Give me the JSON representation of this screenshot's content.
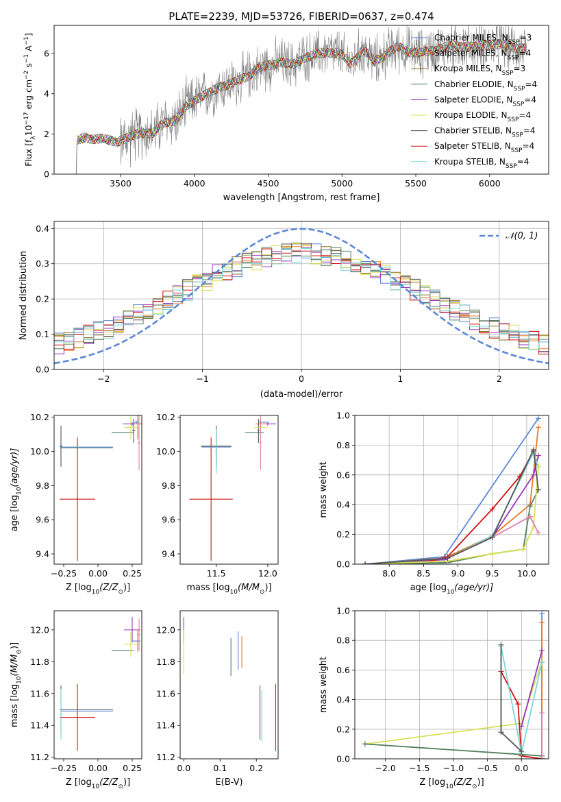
{
  "figure": {
    "title": "PLATE=2239, MJD=53726, FIBERID=0637, z=0.474"
  },
  "colors": {
    "ChabrierMILES": "#5b86d6",
    "SalpeterMILES": "#e07b2a",
    "KroupaMILES": "#8a6a1a",
    "ChabrierELODIE": "#4f7f5c",
    "SalpeterELODIE": "#9933bb",
    "KroupaELODIE": "#d8e055",
    "ChabrierSTELIB": "#555555",
    "SalpeterSTELIB": "#cc1111",
    "KroupaSTELIB": "#77d7d7",
    "pink": "#e27bb0",
    "gaussian": "#5b86d6",
    "spectrum": "#808080",
    "grid": "#b0b0b0"
  },
  "models": [
    {
      "key": "ChabrierMILES",
      "label": "Chabrier MILES, N",
      "sub": "SSP",
      "tail": "=3"
    },
    {
      "key": "SalpeterMILES",
      "label": "Salpeter MILES, N",
      "sub": "SSP",
      "tail": "=4"
    },
    {
      "key": "KroupaMILES",
      "label": "Kroupa MILES, N",
      "sub": "SSP",
      "tail": "=3"
    },
    {
      "key": "ChabrierELODIE",
      "label": "Chabrier ELODIE, N",
      "sub": "SSP",
      "tail": "=4"
    },
    {
      "key": "SalpeterELODIE",
      "label": "Salpeter ELODIE, N",
      "sub": "SSP",
      "tail": "=4"
    },
    {
      "key": "KroupaELODIE",
      "label": "Kroupa ELODIE, N",
      "sub": "SSP",
      "tail": "=4"
    },
    {
      "key": "ChabrierSTELIB",
      "label": "Chabrier STELIB, N",
      "sub": "SSP",
      "tail": "=4"
    },
    {
      "key": "SalpeterSTELIB",
      "label": "Salpeter STELIB, N",
      "sub": "SSP",
      "tail": "=4"
    },
    {
      "key": "KroupaSTELIB",
      "label": "Kroupa STELIB, N",
      "sub": "SSP",
      "tail": "=4"
    }
  ],
  "chart_data": [
    {
      "id": "spectrum",
      "type": "line",
      "xlabel": "wavelength [Angstrom, rest frame]",
      "ylabel": "Flux [f",
      "ylabel_sub": "λ",
      "ylabel_rest": "10",
      "ylabel_sup": "−17",
      "ylabel_units": " erg cm",
      "ylabel_sup2": "−2",
      "ylabel_units2": " s",
      "ylabel_sup3": "−1",
      "ylabel_units3": " A",
      "ylabel_sup4": "−1",
      "ylabel_end": "]",
      "xlim": [
        3050,
        6400
      ],
      "ylim": [
        0,
        7.4
      ],
      "xticks": [
        3500,
        4000,
        4500,
        5000,
        5500,
        6000
      ],
      "yticks": [
        0,
        2,
        4,
        6
      ],
      "trend_x": [
        3200,
        3260,
        3330,
        3400,
        3480,
        3560,
        3640,
        3720,
        3800,
        3880,
        3950,
        4020,
        4100,
        4180,
        4260,
        4340,
        4420,
        4500,
        4580,
        4660,
        4740,
        4820,
        4900,
        4980,
        5060,
        5140,
        5220,
        5300,
        5380,
        5460,
        5540,
        5620,
        5700,
        5800,
        5900,
        6000,
        6100,
        6200,
        6250
      ],
      "trend_y": [
        1.6,
        1.85,
        1.75,
        1.7,
        1.65,
        1.8,
        2.1,
        2.0,
        2.6,
        2.7,
        3.4,
        3.8,
        4.0,
        4.4,
        4.5,
        4.8,
        5.2,
        5.4,
        5.6,
        5.4,
        5.8,
        5.9,
        6.1,
        6.0,
        5.5,
        6.2,
        5.6,
        6.0,
        6.3,
        6.1,
        6.0,
        6.2,
        6.3,
        6.4,
        6.3,
        6.5,
        6.4,
        6.3,
        6.2
      ]
    },
    {
      "id": "residuals",
      "type": "line",
      "xlabel": "(data-model)/error",
      "ylabel": "Normed distribution",
      "xlim": [
        -2.5,
        2.5
      ],
      "ylim": [
        0,
        0.42
      ],
      "xticks": [
        -2,
        -1,
        0,
        1,
        2
      ],
      "xticklabels": [
        "−2",
        "−1",
        "0",
        "1",
        "2"
      ],
      "yticks": [
        0.0,
        0.1,
        0.2,
        0.3,
        0.4
      ],
      "yticklabels": [
        "0.0",
        "0.1",
        "0.2",
        "0.3",
        "0.4"
      ],
      "legend": "𝒩(0, 1)"
    },
    {
      "id": "age_vs_Z",
      "type": "errorbar",
      "xlabel": "Z [log",
      "xlabel_sub": "10",
      "xlabel_rest": "(Z/Z",
      "xlabel_sub2": "⊙",
      "xlabel_end": ")]",
      "ylabel": "age  [log",
      "ylabel_sub": "10",
      "ylabel_rest": "(age/yr)]",
      "xlim": [
        -0.32,
        0.32
      ],
      "ylim": [
        9.34,
        10.21
      ],
      "xticks": [
        -0.25,
        0.0,
        0.25
      ],
      "xticklabels": [
        "−0.25",
        "0.00",
        "0.25"
      ],
      "yticks": [
        9.4,
        9.6,
        9.8,
        10.0,
        10.2
      ],
      "yticklabels": [
        "9.4",
        "9.6",
        "9.8",
        "10.0",
        "10.2"
      ],
      "points": [
        {
          "m": "SalpeterSTELIB",
          "x": -0.15,
          "y": 9.72,
          "xerr": 0.13,
          "yerr": 0.36
        },
        {
          "m": "KroupaSTELIB",
          "x": -0.27,
          "y": 10.02,
          "xerr": 0.01,
          "yerr": 0.1
        },
        {
          "m": "ChabrierSTELIB",
          "x": -0.27,
          "y": 10.03,
          "xerr": 0.01,
          "yerr": 0.12
        },
        {
          "m": "ChabrierELODIE",
          "x": -0.08,
          "y": 10.02,
          "xerr": 0.19,
          "yerr": 0.0
        },
        {
          "m": "ChabrierMILES",
          "x": -0.08,
          "y": 10.025,
          "xerr": 0.19,
          "yerr": 0.0
        },
        {
          "m": "ChabrierELODIE",
          "x": 0.18,
          "y": 10.11,
          "xerr": 0.08,
          "yerr": 0.0
        },
        {
          "m": "ChabrierSTELIB",
          "x": 0.26,
          "y": 10.12,
          "xerr": 0.01,
          "yerr": 0.07
        },
        {
          "m": "KroupaELODIE",
          "x": 0.24,
          "y": 10.14,
          "xerr": 0.05,
          "yerr": 0.07
        },
        {
          "m": "SalpeterELODIE",
          "x": 0.25,
          "y": 10.16,
          "xerr": 0.07,
          "yerr": 0.01
        },
        {
          "m": "SalpeterMILES",
          "x": 0.29,
          "y": 10.16,
          "xerr": 0.02,
          "yerr": 0.09
        },
        {
          "m": "pink",
          "x": 0.3,
          "y": 10.05,
          "xerr": 0.01,
          "yerr": 0.16
        },
        {
          "m": "ChabrierMILES",
          "x": 0.28,
          "y": 10.17,
          "xerr": 0.02,
          "yerr": 0.01
        }
      ]
    },
    {
      "id": "age_vs_mass",
      "type": "errorbar",
      "xlabel": "mass [log",
      "xlabel_sub": "10",
      "xlabel_rest": "(M/M",
      "xlabel_sub2": "⊙",
      "xlabel_end": ")]",
      "xlim": [
        11.15,
        12.1
      ],
      "ylim": [
        9.34,
        10.21
      ],
      "xticks": [
        11.5,
        12.0
      ],
      "xticklabels": [
        "11.5",
        "12.0"
      ],
      "yticks": [
        9.4,
        9.6,
        9.8,
        10.0,
        10.2
      ],
      "yticklabels": [
        "9.4",
        "9.6",
        "9.8",
        "10.0",
        "10.2"
      ],
      "points": [
        {
          "m": "SalpeterSTELIB",
          "x": 11.45,
          "y": 9.72,
          "xerr": 0.21,
          "yerr": 0.36
        },
        {
          "m": "ChabrierSTELIB",
          "x": 11.5,
          "y": 10.03,
          "xerr": 0.15,
          "yerr": 0.12
        },
        {
          "m": "ChabrierMILES",
          "x": 11.5,
          "y": 10.025,
          "xerr": 0.14,
          "yerr": 0.0
        },
        {
          "m": "KroupaSTELIB",
          "x": 11.5,
          "y": 10.0,
          "xerr": 0.01,
          "yerr": 0.13
        },
        {
          "m": "ChabrierELODIE",
          "x": 11.87,
          "y": 10.11,
          "xerr": 0.09,
          "yerr": 0.0
        },
        {
          "m": "ChabrierSTELIB",
          "x": 11.91,
          "y": 10.12,
          "xerr": 0.01,
          "yerr": 0.07
        },
        {
          "m": "KroupaELODIE",
          "x": 11.93,
          "y": 10.14,
          "xerr": 0.06,
          "yerr": 0.07
        },
        {
          "m": "SalpeterELODIE",
          "x": 12.0,
          "y": 10.16,
          "xerr": 0.08,
          "yerr": 0.01
        },
        {
          "m": "SalpeterMILES",
          "x": 11.93,
          "y": 10.16,
          "xerr": 0.05,
          "yerr": 0.03
        },
        {
          "m": "pink",
          "x": 11.93,
          "y": 10.05,
          "xerr": 0.01,
          "yerr": 0.16
        },
        {
          "m": "ChabrierMILES",
          "x": 11.96,
          "y": 10.17,
          "xerr": 0.05,
          "yerr": 0.0
        }
      ]
    },
    {
      "id": "mass_weight_vs_age",
      "type": "line",
      "xlabel": "age  [log",
      "xlabel_sub": "10",
      "xlabel_rest": "(age/yr)]",
      "ylabel": "mass weight",
      "xlim": [
        7.5,
        10.32
      ],
      "ylim": [
        0,
        1.0
      ],
      "xticks": [
        8.0,
        8.5,
        9.0,
        9.5,
        10.0
      ],
      "xticklabels": [
        "8.0",
        "8.5",
        "9.0",
        "9.5",
        "10.0"
      ],
      "yticks": [
        0.0,
        0.2,
        0.4,
        0.6,
        0.8,
        1.0
      ],
      "yticklabels": [
        "0.0",
        "0.2",
        "0.4",
        "0.6",
        "0.8",
        "1.0"
      ],
      "series": [
        {
          "m": "ChabrierMILES",
          "x": [
            7.65,
            8.8,
            10.17
          ],
          "y": [
            0.0,
            0.05,
            0.98
          ]
        },
        {
          "m": "SalpeterMILES",
          "x": [
            7.65,
            8.8,
            9.5,
            10.05,
            10.17
          ],
          "y": [
            0.0,
            0.04,
            0.19,
            0.4,
            0.92
          ]
        },
        {
          "m": "SalpeterELODIE",
          "x": [
            7.65,
            8.8,
            9.5,
            10.1,
            10.17
          ],
          "y": [
            0.0,
            0.03,
            0.18,
            0.6,
            0.73
          ]
        },
        {
          "m": "SalpeterSTELIB",
          "x": [
            7.65,
            8.5,
            8.85,
            9.5,
            9.9,
            10.1
          ],
          "y": [
            0.0,
            0.01,
            0.05,
            0.37,
            0.59,
            0.76
          ]
        },
        {
          "m": "KroupaSTELIB",
          "x": [
            7.65,
            8.85,
            9.5,
            10.1,
            10.17
          ],
          "y": [
            0.0,
            0.04,
            0.19,
            0.75,
            0.65
          ]
        },
        {
          "m": "ChabrierELODIE",
          "x": [
            7.65,
            8.85,
            9.5,
            9.95,
            10.05,
            10.17
          ],
          "y": [
            0.0,
            0.01,
            0.07,
            0.1,
            0.39,
            0.5
          ]
        },
        {
          "m": "KroupaELODIE",
          "x": [
            7.65,
            8.85,
            9.5,
            9.95,
            10.1,
            10.17
          ],
          "y": [
            0.0,
            0.02,
            0.07,
            0.1,
            0.25,
            0.66
          ]
        },
        {
          "m": "pink",
          "x": [
            8.85,
            9.5,
            10.05,
            10.17
          ],
          "y": [
            0.04,
            0.18,
            0.32,
            0.21
          ]
        },
        {
          "m": "ChabrierSTELIB",
          "x": [
            7.65,
            8.85,
            9.5,
            10.1,
            10.17
          ],
          "y": [
            0.0,
            0.04,
            0.18,
            0.77,
            0.5
          ]
        }
      ]
    },
    {
      "id": "mass_vs_Z",
      "type": "errorbar",
      "xlabel": "Z [log",
      "xlabel_sub": "10",
      "xlabel_rest": "(Z/Z",
      "xlabel_sub2": "⊙",
      "xlabel_end": ")]",
      "ylabel": "mass [log",
      "ylabel_sub": "10",
      "ylabel_rest": "(M/M",
      "ylabel_sub2": "⊙",
      "ylabel_end": ")]",
      "xlim": [
        -0.32,
        0.32
      ],
      "ylim": [
        11.19,
        12.12
      ],
      "xticks": [
        -0.25,
        0.0,
        0.25
      ],
      "xticklabels": [
        "−0.25",
        "0.00",
        "0.25"
      ],
      "yticks": [
        11.2,
        11.4,
        11.6,
        11.8,
        12.0
      ],
      "yticklabels": [
        "11.2",
        "11.4",
        "11.6",
        "11.8",
        "12.0"
      ],
      "points": [
        {
          "m": "SalpeterSTELIB",
          "x": -0.15,
          "y": 11.45,
          "xerr": 0.13,
          "yerr": 0.21
        },
        {
          "m": "ChabrierSTELIB",
          "x": -0.08,
          "y": 11.5,
          "xerr": 0.19,
          "yerr": 0.0
        },
        {
          "m": "ChabrierSTELIB",
          "x": -0.27,
          "y": 11.5,
          "xerr": 0.01,
          "yerr": 0.15
        },
        {
          "m": "KroupaSTELIB",
          "x": -0.27,
          "y": 11.47,
          "xerr": 0.01,
          "yerr": 0.16
        },
        {
          "m": "ChabrierMILES",
          "x": -0.08,
          "y": 11.49,
          "xerr": 0.19,
          "yerr": 0.0
        },
        {
          "m": "ChabrierELODIE",
          "x": 0.18,
          "y": 11.87,
          "xerr": 0.08,
          "yerr": 0.0
        },
        {
          "m": "KroupaELODIE",
          "x": 0.24,
          "y": 11.91,
          "xerr": 0.05,
          "yerr": 0.08
        },
        {
          "m": "SalpeterELODIE",
          "x": 0.25,
          "y": 12.0,
          "xerr": 0.06,
          "yerr": 0.08
        },
        {
          "m": "SalpeterMILES",
          "x": 0.29,
          "y": 11.93,
          "xerr": 0.02,
          "yerr": 0.07
        },
        {
          "m": "ChabrierMILES",
          "x": 0.28,
          "y": 11.93,
          "xerr": 0.03,
          "yerr": 0.0
        },
        {
          "m": "pink",
          "x": 0.3,
          "y": 11.97,
          "xerr": 0.01,
          "yerr": 0.1
        }
      ]
    },
    {
      "id": "mass_vs_EBV",
      "type": "errorbar",
      "xlabel": "E(B-V)",
      "xlim": [
        -0.01,
        0.26
      ],
      "ylim": [
        11.19,
        12.12
      ],
      "xticks": [
        0.0,
        0.1,
        0.2
      ],
      "xticklabels": [
        "0.0",
        "0.1",
        "0.2"
      ],
      "yticks": [
        11.2,
        11.4,
        11.6,
        11.8,
        12.0
      ],
      "yticklabels": [
        "11.2",
        "11.4",
        "11.6",
        "11.8",
        "12.0"
      ],
      "points": [
        {
          "m": "SalpeterELODIE",
          "x": 0.0,
          "y": 12.0,
          "xerr": 0.0,
          "yerr": 0.08
        },
        {
          "m": "KroupaELODIE",
          "x": 0.0,
          "y": 11.86,
          "xerr": 0.0,
          "yerr": 0.14
        },
        {
          "m": "ChabrierELODIE",
          "x": 0.13,
          "y": 11.83,
          "xerr": 0.0,
          "yerr": 0.12
        },
        {
          "m": "ChabrierMILES",
          "x": 0.15,
          "y": 11.87,
          "xerr": 0.0,
          "yerr": 0.12
        },
        {
          "m": "SalpeterMILES",
          "x": 0.16,
          "y": 11.86,
          "xerr": 0.0,
          "yerr": 0.1
        },
        {
          "m": "ChabrierSTELIB",
          "x": 0.21,
          "y": 11.48,
          "xerr": 0.0,
          "yerr": 0.17
        },
        {
          "m": "KroupaSTELIB",
          "x": 0.215,
          "y": 11.46,
          "xerr": 0.0,
          "yerr": 0.16
        },
        {
          "m": "SalpeterSTELIB",
          "x": 0.253,
          "y": 11.45,
          "xerr": 0.0,
          "yerr": 0.21
        }
      ]
    },
    {
      "id": "mass_weight_vs_Z",
      "type": "line",
      "xlabel": "Z [log",
      "xlabel_sub": "10",
      "xlabel_rest": "(Z/Z",
      "xlabel_sub2": "⊙",
      "xlabel_end": ")]",
      "ylabel": "mass weight",
      "xlim": [
        -2.45,
        0.4
      ],
      "ylim": [
        0,
        1.0
      ],
      "xticks": [
        -2.0,
        -1.5,
        -1.0,
        -0.5,
        0.0
      ],
      "xticklabels": [
        "−2.0",
        "−1.5",
        "−1.0",
        "−0.5",
        "0.0"
      ],
      "yticks": [
        0.0,
        0.2,
        0.4,
        0.6,
        0.8,
        1.0
      ],
      "yticklabels": [
        "0.0",
        "0.2",
        "0.4",
        "0.6",
        "0.8",
        "1.0"
      ],
      "series": [
        {
          "m": "ChabrierMILES",
          "x": [
            0.3,
            0.3
          ],
          "y": [
            0.0,
            0.98
          ]
        },
        {
          "m": "SalpeterMILES",
          "x": [
            0.3,
            0.3
          ],
          "y": [
            0.02,
            0.92
          ]
        },
        {
          "m": "KroupaELODIE",
          "x": [
            -2.3,
            0.0,
            0.3
          ],
          "y": [
            0.1,
            0.24,
            0.66
          ]
        },
        {
          "m": "ChabrierELODIE",
          "x": [
            -2.3,
            0.3
          ],
          "y": [
            0.1,
            0.02
          ]
        },
        {
          "m": "SalpeterSTELIB",
          "x": [
            -0.3,
            -0.05,
            0.0,
            0.3
          ],
          "y": [
            0.59,
            0.37,
            0.02,
            0.0
          ]
        },
        {
          "m": "SalpeterELODIE",
          "x": [
            0.0,
            0.3
          ],
          "y": [
            0.22,
            0.73
          ]
        },
        {
          "m": "KroupaSTELIB",
          "x": [
            -0.3,
            -0.3,
            0.0,
            0.3
          ],
          "y": [
            0.18,
            0.76,
            0.04,
            0.65
          ]
        },
        {
          "m": "ChabrierSTELIB",
          "x": [
            -0.3,
            -0.3,
            0.0
          ],
          "y": [
            0.77,
            0.18,
            0.05
          ]
        },
        {
          "m": "pink",
          "x": [
            0.3,
            0.3
          ],
          "y": [
            0.0,
            0.31
          ]
        }
      ]
    }
  ]
}
